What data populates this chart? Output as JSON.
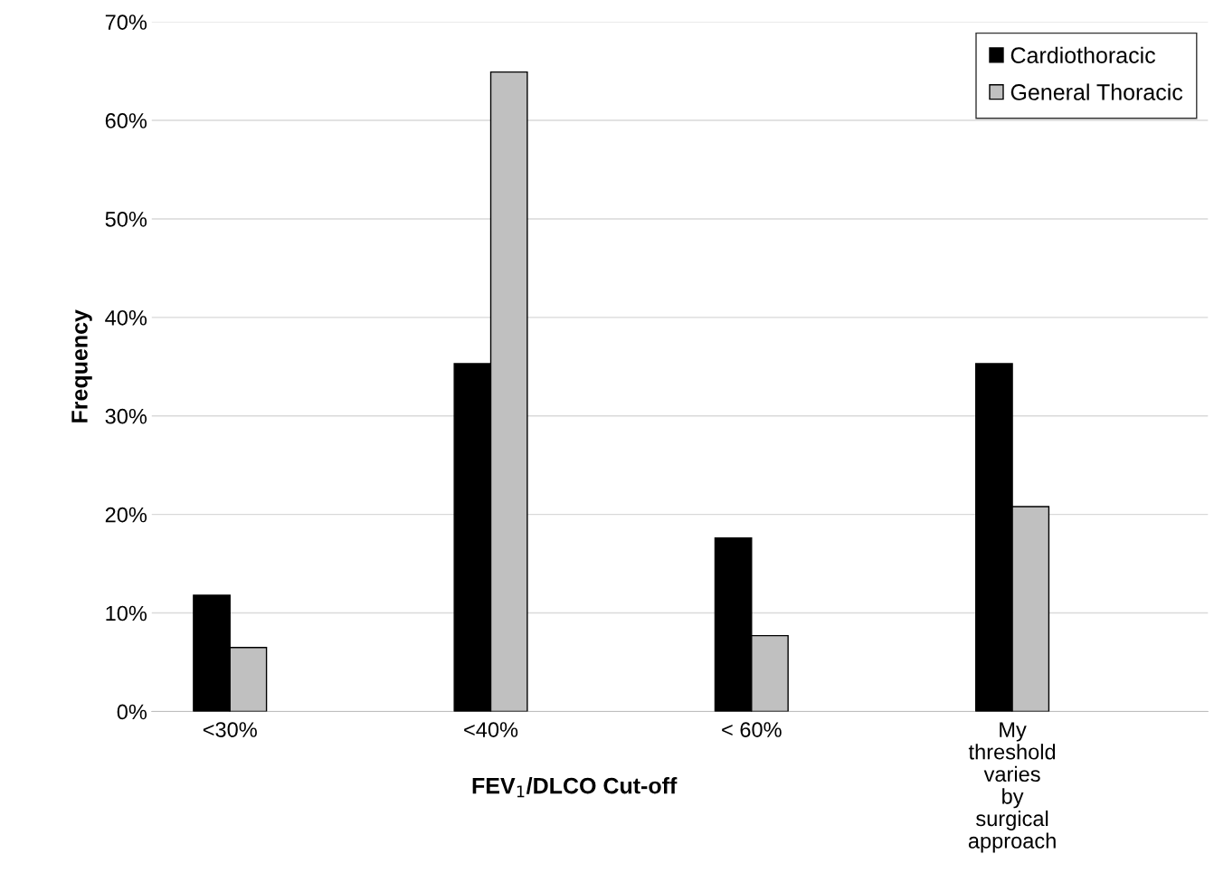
{
  "chart_data": {
    "type": "bar",
    "xlabel": "FEV$_{1}$/DLCO Cut-off",
    "ylabel": "Frequency",
    "categories": [
      "<30%",
      "<40%",
      "< 60%",
      "My threshold varies by surgical approach"
    ],
    "series": [
      {
        "name": "Cardiothoracic",
        "color": "#000000",
        "values": [
          11.8,
          35.3,
          17.6,
          35.3
        ]
      },
      {
        "name": "General Thoracic",
        "color": "#c0c0c0",
        "values": [
          6.5,
          64.9,
          7.7,
          20.8
        ]
      }
    ],
    "ylim": [
      0,
      70
    ],
    "yticks": [
      {
        "value": 0,
        "label": "0%"
      },
      {
        "value": 10,
        "label": "10%"
      },
      {
        "value": 20,
        "label": "20%"
      },
      {
        "value": 30,
        "label": "30%"
      },
      {
        "value": 40,
        "label": "40%"
      },
      {
        "value": 50,
        "label": "50%"
      },
      {
        "value": 60,
        "label": "60%"
      },
      {
        "value": 70,
        "label": "70%"
      }
    ],
    "grid": "y",
    "legend": "top right"
  }
}
